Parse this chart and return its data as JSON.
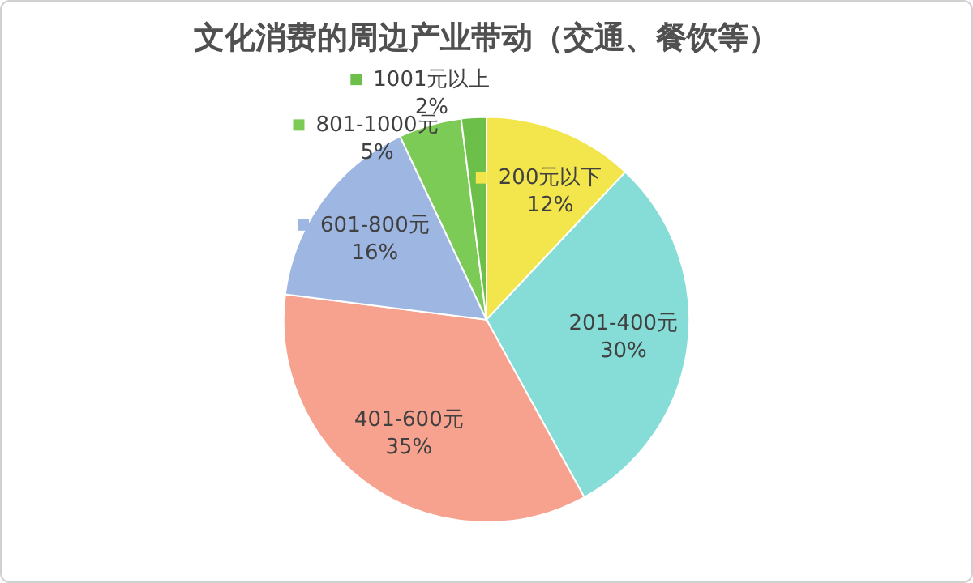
{
  "chart_data": {
    "type": "pie",
    "title": "文化消费的周边产业带动（交通、餐饮等）",
    "categories": [
      "200元以下",
      "201-400元",
      "401-600元",
      "601-800元",
      "801-1000元",
      "1001元以上"
    ],
    "values": [
      12,
      30,
      35,
      16,
      5,
      2
    ],
    "colors": [
      "#f2e64c",
      "#86dcd6",
      "#f6a28e",
      "#9db6e2",
      "#7ccb56",
      "#6cc04a"
    ],
    "value_labels": [
      "12%",
      "30%",
      "35%",
      "16%",
      "5%",
      "2%"
    ],
    "legend": "top"
  }
}
